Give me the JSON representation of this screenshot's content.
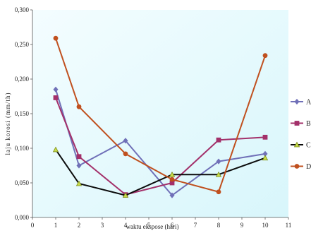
{
  "chart_data": {
    "type": "line",
    "xlabel": "waktu ekspose (hari)",
    "ylabel": "laju korosi (mm/th)",
    "x_ticks": [
      "0",
      "1",
      "2",
      "3",
      "4",
      "5",
      "6",
      "7",
      "8",
      "9",
      "10",
      "11"
    ],
    "y_ticks": [
      "0,000",
      "0,050",
      "0,100",
      "0,150",
      "0,200",
      "0,250",
      "0,300"
    ],
    "xlim": [
      0,
      11
    ],
    "ylim": [
      0,
      0.3
    ],
    "grid": false,
    "legend_position": "right",
    "x": [
      1,
      2,
      4,
      6,
      8,
      10
    ],
    "series": [
      {
        "name": "A",
        "color": "#7070b8",
        "marker": "diamond",
        "values": [
          0.185,
          0.075,
          0.111,
          0.032,
          0.081,
          0.092
        ]
      },
      {
        "name": "B",
        "color": "#a3306a",
        "marker": "square",
        "values": [
          0.173,
          0.088,
          0.033,
          0.05,
          0.112,
          0.116
        ]
      },
      {
        "name": "C",
        "color": "#0b0b0b",
        "marker": "triangle",
        "values": [
          0.098,
          0.049,
          0.032,
          0.062,
          0.062,
          0.086
        ]
      },
      {
        "name": "D",
        "color": "#c0501f",
        "marker": "circle",
        "values": [
          0.259,
          0.16,
          0.092,
          0.055,
          0.037,
          0.234
        ]
      }
    ],
    "plot_background": "#e6fbff"
  }
}
